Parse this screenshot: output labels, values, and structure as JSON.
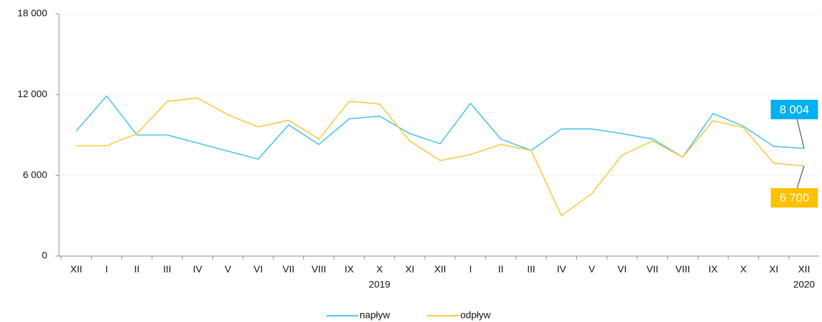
{
  "chart_data": {
    "type": "line",
    "categories": [
      "XII",
      "I",
      "II",
      "III",
      "IV",
      "V",
      "VI",
      "VII",
      "VIII",
      "IX",
      "X",
      "XI",
      "XII",
      "I",
      "II",
      "III",
      "IV",
      "V",
      "VI",
      "VII",
      "VIII",
      "IX",
      "X",
      "XI",
      "XII"
    ],
    "years": [
      null,
      null,
      null,
      null,
      null,
      null,
      null,
      null,
      null,
      null,
      "2019",
      null,
      null,
      null,
      null,
      null,
      null,
      null,
      null,
      null,
      null,
      null,
      null,
      null,
      "2020"
    ],
    "series": [
      {
        "name": "napływ",
        "color": "#4cc3ea",
        "values": [
          9300,
          11900,
          9000,
          9000,
          8400,
          7800,
          7200,
          9750,
          8300,
          10200,
          10400,
          9100,
          8350,
          11350,
          8700,
          7850,
          9450,
          9450,
          9100,
          8700,
          7350,
          10600,
          9650,
          8150,
          8004
        ],
        "value_labels": [
          null,
          null,
          null,
          null,
          null,
          null,
          null,
          null,
          null,
          null,
          null,
          null,
          null,
          null,
          null,
          null,
          null,
          null,
          null,
          null,
          null,
          null,
          null,
          null,
          "8 004"
        ],
        "label_color": "#00b0f0"
      },
      {
        "name": "odpływ",
        "color": "#fcc83c",
        "values": [
          8200,
          8200,
          9100,
          11500,
          11750,
          10500,
          9600,
          10100,
          8700,
          11500,
          11300,
          8550,
          7100,
          7550,
          8300,
          7850,
          3000,
          4650,
          7500,
          8550,
          7350,
          10050,
          9550,
          6900,
          6700
        ],
        "value_labels": [
          null,
          null,
          null,
          null,
          null,
          null,
          null,
          null,
          null,
          null,
          null,
          null,
          null,
          null,
          null,
          null,
          null,
          null,
          null,
          null,
          null,
          null,
          null,
          null,
          "6 700"
        ],
        "label_color": "#ffc000"
      }
    ],
    "ylim": [
      0,
      18000
    ],
    "yticks": [
      {
        "value": 0,
        "label": "0"
      },
      {
        "value": 6000,
        "label": "6 000"
      },
      {
        "value": 12000,
        "label": "12 000"
      },
      {
        "value": 18000,
        "label": "18 000"
      }
    ],
    "grid": true,
    "legend": "bottom"
  }
}
